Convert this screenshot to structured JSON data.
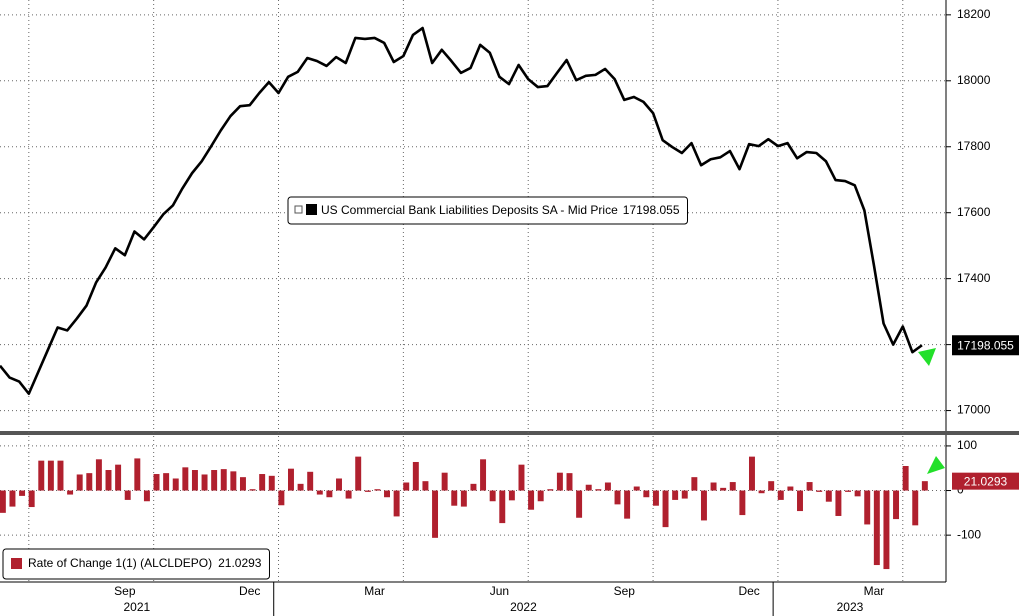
{
  "chart_data": [
    {
      "type": "line",
      "series": [
        {
          "name": "US Commercial Bank Liabilities Deposits SA - Mid Price",
          "color": "#000000",
          "values": [
            17136,
            17100,
            17088,
            17051,
            17118,
            17185,
            17252,
            17243,
            17279,
            17318,
            17388,
            17434,
            17492,
            17471,
            17543,
            17519,
            17556,
            17595,
            17622,
            17674,
            17720,
            17756,
            17802,
            17850,
            17893,
            17923,
            17926,
            17963,
            17996,
            17963,
            18012,
            18027,
            18069,
            18060,
            18045,
            18072,
            18054,
            18130,
            18127,
            18130,
            18115,
            18057,
            18075,
            18139,
            18160,
            18054,
            18094,
            18060,
            18024,
            18039,
            18109,
            18085,
            18012,
            17990,
            18048,
            18005,
            17981,
            17984,
            18024,
            18063,
            18002,
            18015,
            18018,
            18036,
            18005,
            17942,
            17951,
            17936,
            17902,
            17820,
            17799,
            17781,
            17811,
            17744,
            17762,
            17768,
            17787,
            17732,
            17808,
            17802,
            17823,
            17802,
            17811,
            17765,
            17784,
            17781,
            17756,
            17699,
            17696,
            17683,
            17607,
            17440,
            17264,
            17200,
            17255,
            17177,
            17198.055
          ]
        }
      ],
      "ylim": [
        16935,
        18245
      ],
      "yticks": [
        17000,
        17200,
        17400,
        17600,
        17800,
        18000,
        18200
      ],
      "grid": true
    },
    {
      "type": "bar",
      "series": [
        {
          "name": "Rate of Change 1(1) (ALCLDEPO)",
          "color": "#b0202e",
          "values": [
            -50,
            -36,
            -12,
            -37,
            67,
            67,
            67,
            -9,
            36,
            39,
            70,
            46,
            58,
            -21,
            72,
            -24,
            37,
            39,
            27,
            52,
            46,
            36,
            46,
            48,
            43,
            30,
            3,
            37,
            33,
            -33,
            49,
            15,
            42,
            -9,
            -15,
            27,
            -18,
            76,
            -3,
            3,
            -15,
            -58,
            18,
            64,
            21,
            -106,
            40,
            -34,
            -36,
            15,
            70,
            -24,
            -73,
            -22,
            58,
            -43,
            -24,
            3,
            40,
            39,
            -61,
            13,
            3,
            18,
            -31,
            -63,
            9,
            -15,
            -34,
            -82,
            -21,
            -18,
            30,
            -67,
            18,
            6,
            19,
            -55,
            76,
            -6,
            21,
            -21,
            9,
            -46,
            19,
            -3,
            -25,
            -57,
            -3,
            -13,
            -76,
            -167,
            -176,
            -64,
            55,
            -78,
            21.0293
          ]
        }
      ],
      "categories": [
        null,
        null,
        null,
        null,
        null,
        null,
        null,
        null,
        null,
        null,
        null,
        null,
        null,
        "Sep",
        null,
        null,
        null,
        null,
        null,
        null,
        null,
        null,
        null,
        null,
        null,
        null,
        "Dec",
        null,
        null,
        null,
        null,
        null,
        null,
        null,
        null,
        null,
        null,
        null,
        null,
        "Mar",
        null,
        null,
        null,
        null,
        null,
        null,
        null,
        null,
        null,
        null,
        null,
        null,
        "Jun",
        null,
        null,
        null,
        null,
        null,
        null,
        null,
        null,
        null,
        null,
        null,
        null,
        "Sep",
        null,
        null,
        null,
        null,
        null,
        null,
        null,
        null,
        null,
        null,
        null,
        null,
        "Dec",
        null,
        null,
        null,
        null,
        null,
        null,
        null,
        null,
        null,
        null,
        null,
        null,
        "Mar",
        null,
        null,
        null,
        null,
        null
      ],
      "x_groups": [
        {
          "label": "2021",
          "count": 29
        },
        {
          "label": "2022",
          "count": 52
        },
        {
          "label": "2023",
          "count": 16
        }
      ],
      "ylim": [
        -205,
        120
      ],
      "yticks": [
        -100,
        0,
        100
      ],
      "grid": true
    }
  ]
}
